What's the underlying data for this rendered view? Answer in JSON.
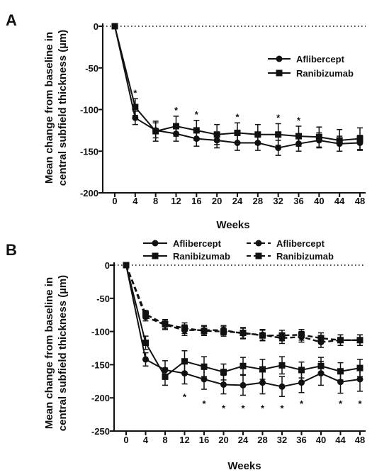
{
  "chart_data": [
    {
      "panel": "A",
      "type": "line",
      "title": "",
      "xlabel": "Weeks",
      "ylabel": "Mean change from baseline in central subfield thickness (µm)",
      "ylabel_lines": [
        "Mean change from baseline in",
        "central subfield thickness (µm)"
      ],
      "x": [
        0,
        4,
        8,
        12,
        16,
        20,
        24,
        28,
        32,
        36,
        40,
        44,
        48
      ],
      "x_tick_labels": [
        "0",
        "4",
        "8",
        "12",
        "16",
        "20",
        "24",
        "28",
        "32",
        "36",
        "40",
        "44",
        "48"
      ],
      "ylim": [
        -200,
        0
      ],
      "y_ticks": [
        0,
        -50,
        -100,
        -150,
        -200
      ],
      "y_tick_labels": [
        "0",
        "-50",
        "-100",
        "-150",
        "-200"
      ],
      "reference_line": 0,
      "legend_position": "top-right",
      "series": [
        {
          "name": "Aflibercept",
          "marker": "circle",
          "line": "solid",
          "values": [
            0,
            -110,
            -125,
            -129,
            -135,
            -137,
            -140,
            -140,
            -146,
            -141,
            -137,
            -141,
            -140
          ],
          "err": [
            0,
            8,
            9,
            9,
            9,
            9,
            9,
            9,
            9,
            9,
            9,
            9,
            9
          ]
        },
        {
          "name": "Ranibizumab",
          "marker": "square",
          "line": "solid",
          "values": [
            0,
            -97,
            -126,
            -120,
            -125,
            -130,
            -128,
            -130,
            -130,
            -132,
            -133,
            -137,
            -135
          ],
          "err": [
            0,
            10,
            12,
            12,
            12,
            12,
            12,
            12,
            13,
            12,
            12,
            13,
            13
          ]
        }
      ],
      "significance_marks": [
        {
          "x": 4,
          "label": "*",
          "y": -77
        },
        {
          "x": 12,
          "label": "*",
          "y": -98
        },
        {
          "x": 16,
          "label": "*",
          "y": -103
        },
        {
          "x": 24,
          "label": "*",
          "y": -106
        },
        {
          "x": 32,
          "label": "*",
          "y": -107
        },
        {
          "x": 36,
          "label": "*",
          "y": -110
        }
      ]
    },
    {
      "panel": "B",
      "type": "line",
      "title": "",
      "xlabel": "Weeks",
      "ylabel": "Mean change from baseline in central subfield thickness (µm)",
      "ylabel_lines": [
        "Mean change from baseline in",
        "central subfield thickness (µm)"
      ],
      "x": [
        0,
        4,
        8,
        12,
        16,
        20,
        24,
        28,
        32,
        36,
        40,
        44,
        48
      ],
      "x_tick_labels": [
        "0",
        "4",
        "8",
        "12",
        "16",
        "20",
        "24",
        "28",
        "32",
        "36",
        "40",
        "44",
        "48"
      ],
      "ylim": [
        -250,
        0
      ],
      "y_ticks": [
        0,
        -50,
        -100,
        -150,
        -200,
        -250
      ],
      "y_tick_labels": [
        "0",
        "-50",
        "-100",
        "-150",
        "-200",
        "-250"
      ],
      "reference_line": 0,
      "legend_position": "top",
      "series": [
        {
          "name": "Aflibercept",
          "marker": "circle",
          "line": "solid",
          "values": [
            0,
            -142,
            -158,
            -163,
            -172,
            -180,
            -181,
            -177,
            -183,
            -177,
            -163,
            -176,
            -172
          ],
          "err": [
            0,
            10,
            14,
            16,
            15,
            14,
            15,
            17,
            15,
            15,
            18,
            17,
            18
          ]
        },
        {
          "name": "Ranibizumab",
          "marker": "square",
          "line": "solid",
          "values": [
            0,
            -117,
            -168,
            -145,
            -153,
            -161,
            -152,
            -157,
            -151,
            -158,
            -152,
            -160,
            -155
          ],
          "err": [
            0,
            10,
            13,
            16,
            15,
            12,
            13,
            15,
            13,
            12,
            13,
            13,
            13
          ]
        },
        {
          "name": "Aflibercept",
          "marker": "circle",
          "line": "dashed",
          "values": [
            0,
            -78,
            -90,
            -98,
            -98,
            -98,
            -103,
            -105,
            -110,
            -108,
            -116,
            -113,
            -113
          ],
          "err": [
            0,
            6,
            7,
            8,
            7,
            7,
            8,
            8,
            8,
            8,
            8,
            8,
            8
          ]
        },
        {
          "name": "Ranibizumab",
          "marker": "square",
          "line": "dashed",
          "values": [
            0,
            -74,
            -89,
            -95,
            -99,
            -100,
            -102,
            -106,
            -106,
            -105,
            -110,
            -113,
            -113
          ],
          "err": [
            0,
            6,
            7,
            8,
            7,
            7,
            8,
            8,
            8,
            8,
            8,
            8,
            8
          ]
        }
      ],
      "significance_marks": [
        {
          "x": 12,
          "label": "*",
          "y": -195
        },
        {
          "x": 16,
          "label": "*",
          "y": -205
        },
        {
          "x": 20,
          "label": "*",
          "y": -212
        },
        {
          "x": 24,
          "label": "*",
          "y": -212
        },
        {
          "x": 28,
          "label": "*",
          "y": -212
        },
        {
          "x": 32,
          "label": "*",
          "y": -212
        },
        {
          "x": 36,
          "label": "*",
          "y": -205
        },
        {
          "x": 44,
          "label": "*",
          "y": -205
        },
        {
          "x": 48,
          "label": "*",
          "y": -205
        }
      ]
    }
  ]
}
